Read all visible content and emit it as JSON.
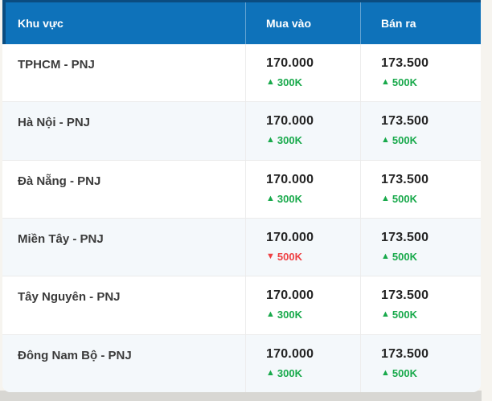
{
  "table": {
    "columns": [
      {
        "label": "Khu vực"
      },
      {
        "label": "Mua vào"
      },
      {
        "label": "Bán ra"
      }
    ],
    "rows": [
      {
        "region": "TPHCM - PNJ",
        "buy": {
          "price": "170.000",
          "change": "300K",
          "direction": "up"
        },
        "sell": {
          "price": "173.500",
          "change": "500K",
          "direction": "up"
        }
      },
      {
        "region": "Hà Nội - PNJ",
        "buy": {
          "price": "170.000",
          "change": "300K",
          "direction": "up"
        },
        "sell": {
          "price": "173.500",
          "change": "500K",
          "direction": "up"
        }
      },
      {
        "region": "Đà Nẵng - PNJ",
        "buy": {
          "price": "170.000",
          "change": "300K",
          "direction": "up"
        },
        "sell": {
          "price": "173.500",
          "change": "500K",
          "direction": "up"
        }
      },
      {
        "region": "Miền Tây - PNJ",
        "buy": {
          "price": "170.000",
          "change": "500K",
          "direction": "down"
        },
        "sell": {
          "price": "173.500",
          "change": "500K",
          "direction": "up"
        }
      },
      {
        "region": "Tây Nguyên - PNJ",
        "buy": {
          "price": "170.000",
          "change": "300K",
          "direction": "up"
        },
        "sell": {
          "price": "173.500",
          "change": "500K",
          "direction": "up"
        }
      },
      {
        "region": "Đông Nam Bộ - PNJ",
        "buy": {
          "price": "170.000",
          "change": "300K",
          "direction": "up"
        },
        "sell": {
          "price": "173.500",
          "change": "500K",
          "direction": "up"
        }
      }
    ]
  },
  "icons": {
    "up": "▲",
    "down": "▼"
  },
  "colors": {
    "header_bg": "#0e72ba",
    "header_border": "#0b4c80",
    "up": "#18a94b",
    "down": "#ee4043",
    "row_alt": "#f4f8fb"
  }
}
